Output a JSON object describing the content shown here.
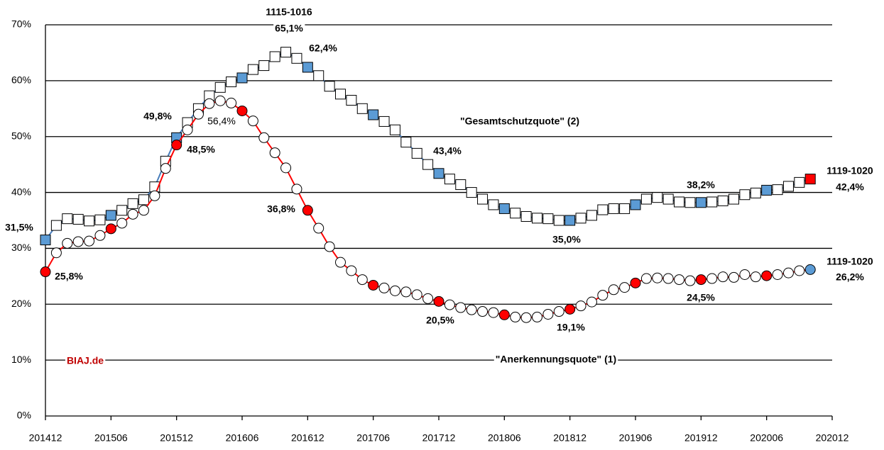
{
  "chart_data": {
    "type": "line",
    "categories": [
      "201412",
      null,
      null,
      null,
      null,
      null,
      "201506",
      null,
      null,
      null,
      null,
      null,
      "201512",
      null,
      null,
      null,
      null,
      null,
      "201606",
      null,
      null,
      null,
      null,
      null,
      "201612",
      null,
      null,
      null,
      null,
      null,
      "201706",
      null,
      null,
      null,
      null,
      null,
      "201712",
      null,
      null,
      null,
      null,
      null,
      "201806",
      null,
      null,
      null,
      null,
      null,
      "201812",
      null,
      null,
      null,
      null,
      null,
      "201906",
      null,
      null,
      null,
      null,
      null,
      "201912",
      null,
      null,
      null,
      null,
      null,
      "202006",
      null,
      null,
      null,
      null,
      null,
      "202012"
    ],
    "series": [
      {
        "name": "\"Gesamtschutzquote\" (2)",
        "marker": "square",
        "color": "#4a7ebb",
        "highlight_color": "#5b9bd5",
        "last_color": "#ff0000",
        "values": [
          31.5,
          34.1,
          35.3,
          35.2,
          34.9,
          35.1,
          35.9,
          36.8,
          38.0,
          38.7,
          41.0,
          45.6,
          49.8,
          52.5,
          55.0,
          57.3,
          58.8,
          59.8,
          60.5,
          62.0,
          62.7,
          64.3,
          65.1,
          64.0,
          62.4,
          60.9,
          59.0,
          57.6,
          56.5,
          55.0,
          53.9,
          52.7,
          51.2,
          49.0,
          47.0,
          45.0,
          43.4,
          42.4,
          41.4,
          40.0,
          38.8,
          37.8,
          37.1,
          36.3,
          35.7,
          35.4,
          35.3,
          35.0,
          35.0,
          35.4,
          35.9,
          36.9,
          37.1,
          37.1,
          37.8,
          38.8,
          39.1,
          38.8,
          38.3,
          38.2,
          38.2,
          38.3,
          38.5,
          38.8,
          39.6,
          39.9,
          40.4,
          40.5,
          41.1,
          41.8,
          42.4,
          null,
          null
        ]
      },
      {
        "name": "\"Anerkennungsquote\" (1)",
        "marker": "circle",
        "color": "#ff0000",
        "highlight_color": "#ff0000",
        "last_color": "#5b9bd5",
        "values": [
          25.8,
          29.2,
          30.9,
          31.2,
          31.3,
          32.3,
          33.5,
          34.5,
          36.1,
          36.8,
          39.4,
          44.3,
          48.5,
          51.2,
          54.0,
          55.9,
          56.4,
          56.0,
          54.6,
          52.8,
          49.8,
          47.1,
          44.4,
          40.6,
          36.8,
          33.6,
          30.3,
          27.5,
          26.0,
          24.4,
          23.4,
          22.9,
          22.4,
          22.2,
          21.7,
          21.0,
          20.5,
          19.9,
          19.4,
          19.0,
          18.7,
          18.5,
          18.1,
          17.7,
          17.6,
          17.7,
          18.2,
          18.7,
          19.1,
          19.7,
          20.4,
          21.6,
          22.6,
          23.0,
          23.8,
          24.6,
          24.7,
          24.6,
          24.4,
          24.2,
          24.4,
          24.6,
          24.9,
          24.8,
          25.3,
          24.9,
          25.1,
          25.3,
          25.6,
          26.0,
          26.2,
          null,
          null
        ]
      }
    ],
    "highlight_every": 6,
    "ylim": [
      0,
      70
    ],
    "yticks": [
      {
        "value": 0,
        "label": "0%"
      },
      {
        "value": 10,
        "label": "10%"
      },
      {
        "value": 20,
        "label": "20%"
      },
      {
        "value": 30,
        "label": "30%"
      },
      {
        "value": 40,
        "label": "40%"
      },
      {
        "value": 50,
        "label": "50%"
      },
      {
        "value": 60,
        "label": "60%"
      },
      {
        "value": 70,
        "label": "70%"
      }
    ],
    "grid": true,
    "annotations": [
      "1115-1016",
      "65,1%",
      "62,4%",
      "49,8%",
      "56,4%",
      "48,5%",
      "43,4%",
      "36,8%",
      "31,5%",
      "25,8%",
      "35,0%",
      "1119-1020",
      "42,4%",
      "38,2%",
      "1119-1020",
      "26,2%",
      "24,5%",
      "20,5%",
      "19,1%",
      "BIAJ.de"
    ]
  }
}
